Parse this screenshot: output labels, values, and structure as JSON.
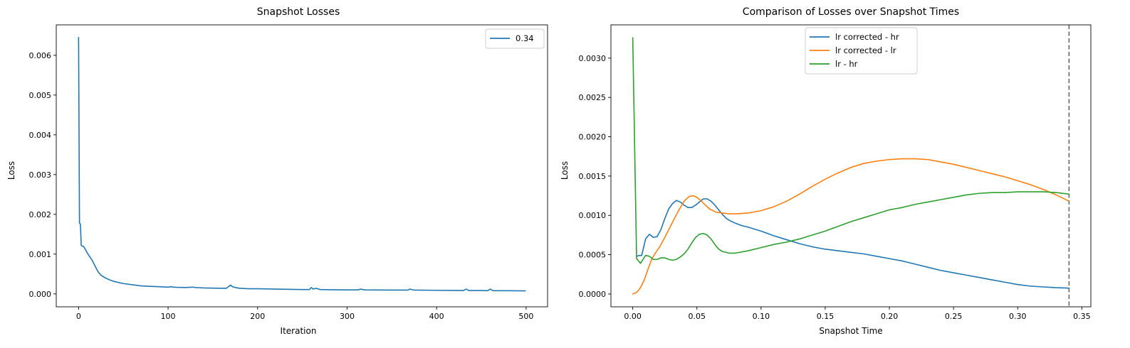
{
  "chart_data": [
    {
      "type": "line",
      "title": "Snapshot Losses",
      "xlabel": "Iteration",
      "ylabel": "Loss",
      "xlim": [
        -24.95,
        523.95
      ],
      "ylim": [
        -0.000325,
        0.006765
      ],
      "xticks": [
        0,
        100,
        200,
        300,
        400,
        500
      ],
      "xtick_labels": [
        "0",
        "100",
        "200",
        "300",
        "400",
        "500"
      ],
      "yticks": [
        0.0,
        0.001,
        0.002,
        0.003,
        0.004,
        0.005,
        0.006
      ],
      "ytick_labels": [
        "0.000",
        "0.001",
        "0.002",
        "0.003",
        "0.004",
        "0.005",
        "0.006"
      ],
      "grid": false,
      "legend_position": "upper right",
      "series": [
        {
          "name": "0.34",
          "color": "#1f77b4",
          "x": [
            0,
            1,
            2,
            3,
            4,
            5,
            6,
            8,
            10,
            12,
            15,
            18,
            20,
            22,
            25,
            30,
            35,
            40,
            50,
            60,
            70,
            80,
            90,
            100,
            103,
            106,
            110,
            120,
            128,
            130,
            135,
            140,
            150,
            160,
            165,
            168,
            170,
            172,
            175,
            180,
            190,
            200,
            220,
            250,
            258,
            260,
            262,
            265,
            270,
            280,
            300,
            312,
            315,
            320,
            350,
            368,
            370,
            375,
            400,
            430,
            433,
            436,
            450,
            457,
            460,
            463,
            480,
            499
          ],
          "y": [
            0.00645,
            0.00178,
            0.00176,
            0.00122,
            0.0012,
            0.0012,
            0.00118,
            0.0011,
            0.00102,
            0.00095,
            0.00085,
            0.00072,
            0.00063,
            0.00055,
            0.00047,
            0.0004,
            0.00035,
            0.00031,
            0.00026,
            0.00023,
            0.0002,
            0.00019,
            0.00018,
            0.00017,
            0.00018,
            0.00017,
            0.000165,
            0.00016,
            0.00017,
            0.00016,
            0.000155,
            0.00015,
            0.000145,
            0.00014,
            0.00014,
            0.00019,
            0.00022,
            0.00018,
            0.00016,
            0.00014,
            0.00013,
            0.00013,
            0.00012,
            0.00011,
            0.00011,
            0.00016,
            0.00012,
            0.00014,
            0.00011,
            0.000105,
            0.0001,
            0.0001,
            0.00012,
            0.0001,
            9.5e-05,
            9.5e-05,
            0.00012,
            9.5e-05,
            9e-05,
            8.5e-05,
            0.00012,
            8.5e-05,
            8.5e-05,
            8e-05,
            0.00012,
            8e-05,
            8e-05,
            7.5e-05
          ]
        }
      ]
    },
    {
      "type": "line",
      "title": "Comparison of Losses over Snapshot Times",
      "xlabel": "Snapshot Time",
      "ylabel": "Loss",
      "xlim": [
        -0.017,
        0.357
      ],
      "ylim": [
        -0.000163,
        0.003423
      ],
      "xticks": [
        0.0,
        0.05,
        0.1,
        0.15,
        0.2,
        0.25,
        0.3,
        0.35
      ],
      "xtick_labels": [
        "0.00",
        "0.05",
        "0.10",
        "0.15",
        "0.20",
        "0.25",
        "0.30",
        "0.35"
      ],
      "yticks": [
        0.0,
        0.0005,
        0.001,
        0.0015,
        0.002,
        0.0025,
        0.003
      ],
      "ytick_labels": [
        "0.0000",
        "0.0005",
        "0.0010",
        "0.0015",
        "0.0020",
        "0.0025",
        "0.0030"
      ],
      "grid": false,
      "legend_position": "upper center",
      "vline": {
        "x": 0.34,
        "color": "#666666",
        "style": "dashed"
      },
      "series": [
        {
          "name": "lr corrected - hr",
          "color": "#1f77b4",
          "x": [
            0.003,
            0.005,
            0.007,
            0.01,
            0.013,
            0.016,
            0.019,
            0.022,
            0.025,
            0.028,
            0.031,
            0.034,
            0.037,
            0.04,
            0.043,
            0.046,
            0.049,
            0.052,
            0.055,
            0.058,
            0.061,
            0.064,
            0.067,
            0.07,
            0.073,
            0.076,
            0.08,
            0.085,
            0.09,
            0.1,
            0.11,
            0.12,
            0.13,
            0.14,
            0.15,
            0.16,
            0.17,
            0.18,
            0.19,
            0.2,
            0.21,
            0.22,
            0.23,
            0.24,
            0.25,
            0.26,
            0.27,
            0.28,
            0.29,
            0.3,
            0.31,
            0.32,
            0.33,
            0.34
          ],
          "y": [
            0.00048,
            0.00049,
            0.00049,
            0.0007,
            0.00076,
            0.00072,
            0.00073,
            0.00082,
            0.00096,
            0.00108,
            0.00115,
            0.00119,
            0.00117,
            0.00113,
            0.0011,
            0.0011,
            0.00113,
            0.00117,
            0.00121,
            0.00121,
            0.00118,
            0.00113,
            0.00107,
            0.00101,
            0.00096,
            0.00093,
            0.0009,
            0.00087,
            0.00085,
            0.0008,
            0.00074,
            0.00069,
            0.00064,
            0.0006,
            0.00057,
            0.00055,
            0.00053,
            0.00051,
            0.00048,
            0.00045,
            0.00042,
            0.00038,
            0.00034,
            0.0003,
            0.00027,
            0.00024,
            0.00021,
            0.00018,
            0.00015,
            0.00012,
            0.0001,
            9e-05,
            8e-05,
            7.5e-05
          ]
        },
        {
          "name": "lr corrected - lr",
          "color": "#ff7f0e",
          "x": [
            0.0,
            0.003,
            0.006,
            0.009,
            0.012,
            0.015,
            0.018,
            0.021,
            0.025,
            0.03,
            0.035,
            0.04,
            0.044,
            0.047,
            0.05,
            0.053,
            0.056,
            0.06,
            0.065,
            0.07,
            0.075,
            0.08,
            0.09,
            0.1,
            0.11,
            0.12,
            0.13,
            0.14,
            0.15,
            0.16,
            0.17,
            0.18,
            0.19,
            0.2,
            0.21,
            0.22,
            0.23,
            0.24,
            0.25,
            0.26,
            0.27,
            0.28,
            0.29,
            0.3,
            0.31,
            0.32,
            0.33,
            0.34
          ],
          "y": [
            0.0,
            2e-05,
            8e-05,
            0.00018,
            0.00032,
            0.00045,
            0.00053,
            0.0006,
            0.00072,
            0.00088,
            0.00104,
            0.00118,
            0.00124,
            0.00125,
            0.00123,
            0.00119,
            0.00114,
            0.00108,
            0.00104,
            0.00103,
            0.00102,
            0.00102,
            0.00103,
            0.00106,
            0.00111,
            0.00118,
            0.00127,
            0.00137,
            0.00146,
            0.00154,
            0.00161,
            0.00166,
            0.00169,
            0.00171,
            0.00172,
            0.00172,
            0.00171,
            0.00168,
            0.00165,
            0.00161,
            0.00157,
            0.00153,
            0.00149,
            0.00144,
            0.00139,
            0.00133,
            0.00126,
            0.00118
          ]
        },
        {
          "name": "lr - hr",
          "color": "#2ca02c",
          "x": [
            0.0,
            0.003,
            0.006,
            0.01,
            0.013,
            0.016,
            0.019,
            0.022,
            0.025,
            0.028,
            0.031,
            0.034,
            0.037,
            0.04,
            0.043,
            0.046,
            0.049,
            0.052,
            0.055,
            0.058,
            0.061,
            0.064,
            0.067,
            0.07,
            0.075,
            0.08,
            0.09,
            0.1,
            0.11,
            0.12,
            0.13,
            0.14,
            0.15,
            0.16,
            0.17,
            0.18,
            0.19,
            0.2,
            0.21,
            0.22,
            0.23,
            0.24,
            0.25,
            0.26,
            0.27,
            0.28,
            0.29,
            0.3,
            0.31,
            0.32,
            0.33,
            0.34
          ],
          "y": [
            0.00326,
            0.00045,
            0.00039,
            0.00049,
            0.00048,
            0.00044,
            0.00044,
            0.00046,
            0.00046,
            0.00044,
            0.00043,
            0.00044,
            0.00047,
            0.00051,
            0.00057,
            0.00065,
            0.00072,
            0.00076,
            0.00077,
            0.00075,
            0.0007,
            0.00063,
            0.00057,
            0.00054,
            0.00052,
            0.00052,
            0.00055,
            0.00059,
            0.00063,
            0.00066,
            0.0007,
            0.00075,
            0.0008,
            0.00086,
            0.00092,
            0.00097,
            0.00102,
            0.00107,
            0.0011,
            0.00114,
            0.00117,
            0.0012,
            0.00123,
            0.00126,
            0.00128,
            0.00129,
            0.00129,
            0.0013,
            0.0013,
            0.0013,
            0.00129,
            0.00127
          ]
        }
      ]
    }
  ]
}
